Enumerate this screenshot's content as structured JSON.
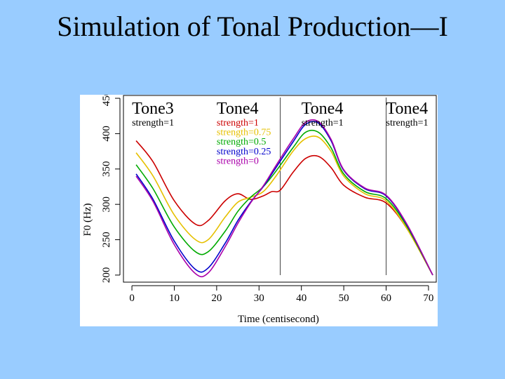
{
  "slide": {
    "title": "Simulation of Tonal Production—I"
  },
  "chart_data": {
    "type": "line",
    "title": "",
    "xlabel": "Time (centisecond)",
    "ylabel": "F0 (Hz)",
    "xlim": [
      -2,
      72
    ],
    "ylim": [
      190,
      455
    ],
    "x_ticks": [
      0,
      10,
      20,
      30,
      40,
      50,
      60,
      70
    ],
    "y_ticks": [
      200,
      250,
      300,
      350,
      400,
      450
    ],
    "grid": false,
    "boundaries": [
      35,
      60
    ],
    "tone_labels": [
      {
        "label": "Tone3",
        "strength": "strength=1",
        "x": 0
      },
      {
        "label": "Tone4",
        "strength": "",
        "x": 20
      },
      {
        "label": "Tone4",
        "strength": "strength=1",
        "x": 40
      },
      {
        "label": "Tone4",
        "strength": "strength=1",
        "x": 60
      }
    ],
    "legend": [
      {
        "text": "strength=1",
        "color": "#cc0000"
      },
      {
        "text": "strength=0.75",
        "color": "#e6c000"
      },
      {
        "text": "strength=0.5",
        "color": "#00aa00"
      },
      {
        "text": "strength=0.25",
        "color": "#0000cc"
      },
      {
        "text": "strength=0",
        "color": "#aa00aa"
      }
    ],
    "series": [
      {
        "color": "#cc0000",
        "x": [
          1,
          5,
          10,
          15,
          18,
          22,
          25,
          28,
          31,
          33,
          35,
          38,
          41,
          44,
          47,
          50,
          55,
          60,
          65,
          71
        ],
        "y": [
          390,
          360,
          305,
          272,
          277,
          305,
          315,
          307,
          312,
          318,
          320,
          345,
          365,
          368,
          352,
          327,
          310,
          302,
          265,
          200
        ]
      },
      {
        "color": "#e6c000",
        "x": [
          1,
          5,
          10,
          15,
          18,
          22,
          25,
          28,
          31,
          34,
          38,
          41,
          44,
          47,
          50,
          55,
          60,
          65,
          71
        ],
        "y": [
          373,
          340,
          285,
          250,
          250,
          282,
          303,
          310,
          318,
          340,
          375,
          393,
          395,
          375,
          340,
          315,
          305,
          265,
          200
        ]
      },
      {
        "color": "#00aa00",
        "x": [
          1,
          5,
          10,
          15,
          18,
          22,
          25,
          28,
          31,
          34,
          38,
          41,
          44,
          47,
          50,
          55,
          60,
          65,
          71
        ],
        "y": [
          356,
          322,
          268,
          233,
          233,
          262,
          290,
          310,
          325,
          347,
          380,
          402,
          402,
          380,
          343,
          318,
          308,
          268,
          200
        ]
      },
      {
        "color": "#0000cc",
        "x": [
          1,
          5,
          10,
          15,
          18,
          22,
          25,
          28,
          31,
          34,
          38,
          41,
          44,
          47,
          50,
          55,
          60,
          65,
          71
        ],
        "y": [
          343,
          307,
          248,
          208,
          210,
          245,
          277,
          303,
          325,
          352,
          388,
          413,
          415,
          390,
          348,
          322,
          312,
          270,
          200
        ]
      },
      {
        "color": "#aa00aa",
        "x": [
          1,
          5,
          10,
          15,
          18,
          22,
          25,
          28,
          31,
          34,
          38,
          41,
          44,
          47,
          50,
          55,
          60,
          65,
          71
        ],
        "y": [
          340,
          304,
          243,
          202,
          203,
          240,
          273,
          302,
          326,
          355,
          392,
          416,
          417,
          392,
          349,
          323,
          313,
          271,
          200
        ]
      }
    ]
  }
}
